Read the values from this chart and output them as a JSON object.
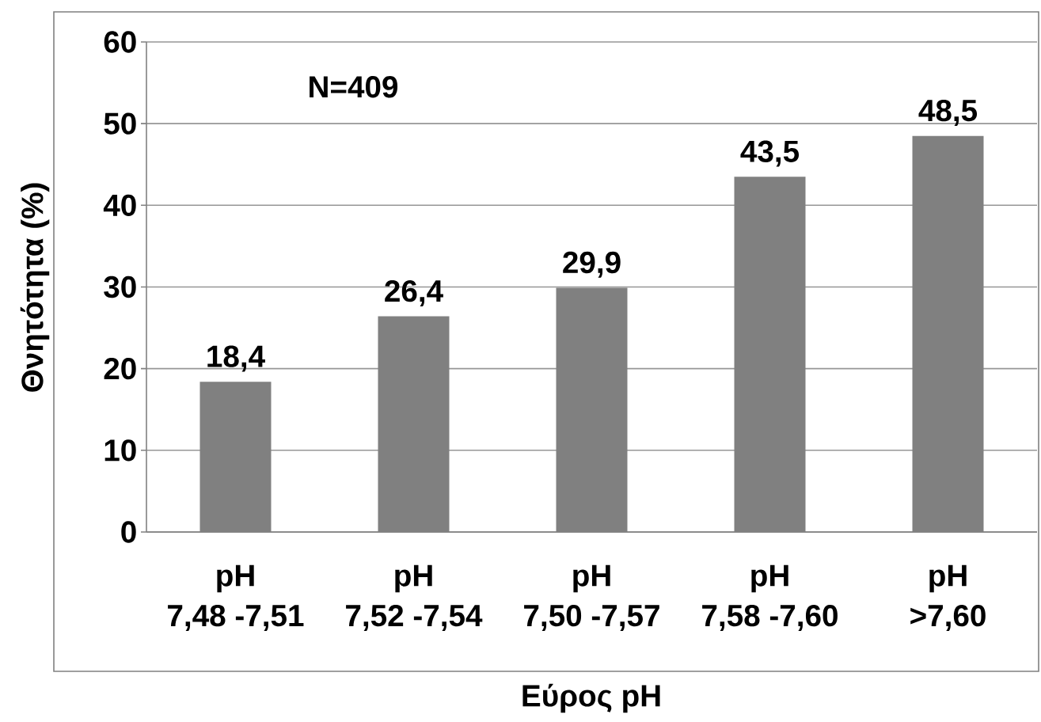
{
  "chart_data": {
    "type": "bar",
    "xlabel": "Εύρος pH",
    "ylabel": "Θνητότητα (%)",
    "categories": [
      "pH\n7,48 -7,51",
      "pH\n7,52 -7,54",
      "pH\n7,50 -7,57",
      "pH\n7,58 -7,60",
      "pH\n>7,60"
    ],
    "values": [
      18.4,
      26.4,
      29.9,
      43.5,
      48.5
    ],
    "color": "#808080",
    "value_labels": [
      "18,4",
      "26,4",
      "29,9",
      "43,5",
      "48,5"
    ],
    "ylim": [
      0,
      60
    ],
    "yticks": [
      0,
      10,
      20,
      30,
      40,
      50,
      60
    ],
    "grid": "y",
    "annotations": [
      "N=409"
    ]
  }
}
